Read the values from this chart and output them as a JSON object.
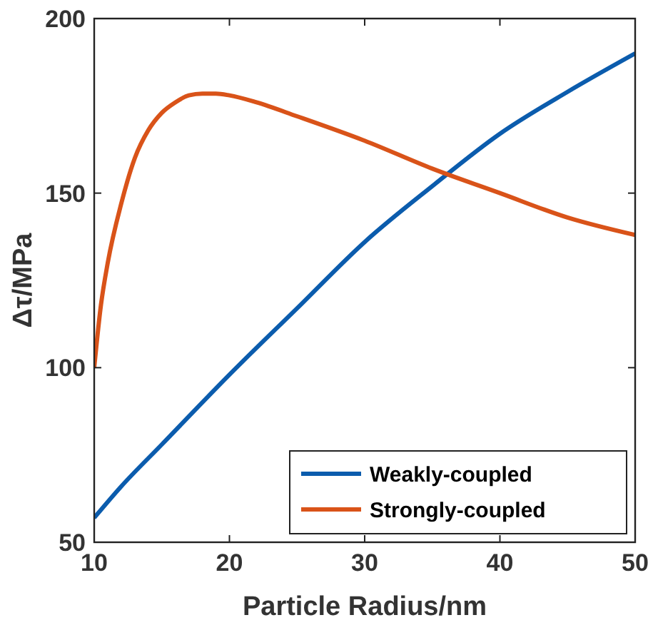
{
  "chart_data": {
    "type": "line",
    "xlabel": "Particle Radius/nm",
    "ylabel": "Δτ/MPa",
    "xlim": [
      10,
      50
    ],
    "ylim": [
      50,
      200
    ],
    "xticks": [
      10,
      20,
      30,
      40,
      50
    ],
    "yticks": [
      50,
      100,
      150,
      200
    ],
    "grid": false,
    "legend": "bottom right",
    "line_style": "solid",
    "marker": "none",
    "series": [
      {
        "name": "Weakly-coupled",
        "color": "#0b5cad",
        "x": [
          10,
          12,
          15,
          20,
          25,
          30,
          35,
          40,
          45,
          50
        ],
        "values": [
          57,
          66,
          78,
          98,
          117,
          136,
          152,
          167,
          179,
          190
        ]
      },
      {
        "name": "Strongly-coupled",
        "color": "#d95319",
        "x": [
          10,
          10.5,
          11,
          12,
          13,
          14,
          15,
          16,
          17,
          18,
          19,
          20,
          22,
          25,
          30,
          35,
          40,
          45,
          50
        ],
        "values": [
          100,
          118,
          130,
          147,
          160,
          168,
          173,
          176,
          178,
          178.5,
          178.5,
          178,
          176,
          172,
          165,
          157,
          150,
          143,
          138
        ]
      }
    ]
  }
}
